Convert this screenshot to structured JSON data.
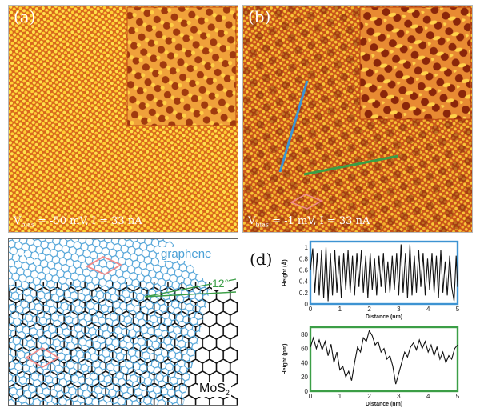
{
  "figure": {
    "panels": {
      "a": {
        "label": "(a)",
        "bias_prefix": "V",
        "bias_sub": "bias",
        "caption_rest": " = -50 mV, I = 33 nA"
      },
      "b": {
        "label": "(b)",
        "bias_prefix": "V",
        "bias_sub": "bias",
        "caption_rest": " = -1 mV, I = 33 nA"
      },
      "c": {
        "label": "(c)",
        "graphene_label": "graphene",
        "angle_label": "12°",
        "mos2_prefix": "MoS",
        "mos2_sub": "2"
      },
      "d": {
        "label": "(d)"
      }
    },
    "colors": {
      "stm_bg": "#d8661c",
      "stm_spot": "#ffe24a",
      "stm_dark": "#9c2f0c",
      "graphene": "#4aa0d6",
      "mos2": "#111111",
      "profile_blue": "#3d93d2",
      "profile_green": "#3b9e46",
      "unit_cell": "#f08a8a"
    }
  },
  "chart_data": [
    {
      "type": "line",
      "frame_color": "#3d93d2",
      "xlabel": "Distance (nm)",
      "ylabel": "Height (Å)",
      "xlim": [
        0,
        5
      ],
      "ylim": [
        0,
        1.1
      ],
      "xticks": [
        "0",
        "1",
        "2",
        "3",
        "4",
        "5"
      ],
      "yticks": [
        "0",
        "0.2",
        "0.4",
        "0.6",
        "0.8",
        "1"
      ],
      "ytick_values": [
        0,
        0.2,
        0.4,
        0.6,
        0.8,
        1.0
      ],
      "x": [
        0,
        0.08,
        0.15,
        0.23,
        0.3,
        0.38,
        0.45,
        0.53,
        0.6,
        0.68,
        0.75,
        0.83,
        0.9,
        0.98,
        1.05,
        1.13,
        1.2,
        1.28,
        1.35,
        1.43,
        1.5,
        1.58,
        1.65,
        1.73,
        1.8,
        1.88,
        1.95,
        2.03,
        2.1,
        2.18,
        2.25,
        2.33,
        2.4,
        2.48,
        2.55,
        2.63,
        2.7,
        2.78,
        2.85,
        2.93,
        3.0,
        3.08,
        3.15,
        3.23,
        3.3,
        3.38,
        3.45,
        3.53,
        3.6,
        3.68,
        3.75,
        3.83,
        3.9,
        3.98,
        4.05,
        4.13,
        4.2,
        4.28,
        4.35,
        4.43,
        4.5,
        4.58,
        4.65,
        4.73,
        4.8,
        4.88,
        4.95,
        5.0
      ],
      "series": [
        {
          "values": [
            0.6,
            0.98,
            0.2,
            0.9,
            0.15,
            0.95,
            0.1,
            1.0,
            0.05,
            0.9,
            0.15,
            0.95,
            0.2,
            0.85,
            0.1,
            0.9,
            0.25,
            0.95,
            0.2,
            0.85,
            0.15,
            0.9,
            0.3,
            0.95,
            0.2,
            0.85,
            0.1,
            0.9,
            0.25,
            0.8,
            0.15,
            0.85,
            0.3,
            0.9,
            0.2,
            0.75,
            0.2,
            0.85,
            0.25,
            0.9,
            0.15,
            1.05,
            0.2,
            0.9,
            0.1,
            1.05,
            0.15,
            0.85,
            0.2,
            0.95,
            0.3,
            0.9,
            0.15,
            0.8,
            0.25,
            0.9,
            0.2,
            0.85,
            0.1,
            0.95,
            0.2,
            0.75,
            0.15,
            0.85,
            0.3,
            0.05,
            0.85,
            0.3
          ]
        }
      ]
    },
    {
      "type": "line",
      "frame_color": "#3b9e46",
      "xlabel": "Distance (nm)",
      "ylabel": "Height (pm)",
      "xlim": [
        0,
        5
      ],
      "ylim": [
        0,
        90
      ],
      "xticks": [
        "0",
        "1",
        "2",
        "3",
        "4",
        "5"
      ],
      "yticks": [
        "0",
        "20",
        "40",
        "60",
        "80"
      ],
      "ytick_values": [
        0,
        20,
        40,
        60,
        80
      ],
      "x": [
        0,
        0.1,
        0.2,
        0.3,
        0.4,
        0.5,
        0.6,
        0.7,
        0.8,
        0.9,
        1.0,
        1.1,
        1.2,
        1.3,
        1.4,
        1.5,
        1.6,
        1.7,
        1.8,
        1.9,
        2.0,
        2.1,
        2.2,
        2.3,
        2.4,
        2.5,
        2.6,
        2.7,
        2.8,
        2.9,
        3.0,
        3.1,
        3.2,
        3.3,
        3.4,
        3.5,
        3.6,
        3.7,
        3.8,
        3.9,
        4.0,
        4.1,
        4.2,
        4.3,
        4.4,
        4.5,
        4.6,
        4.7,
        4.8,
        4.9,
        5.0
      ],
      "series": [
        {
          "values": [
            62,
            75,
            60,
            72,
            58,
            70,
            50,
            66,
            40,
            55,
            30,
            35,
            20,
            28,
            15,
            40,
            62,
            55,
            75,
            70,
            85,
            78,
            65,
            70,
            55,
            60,
            45,
            50,
            35,
            10,
            25,
            40,
            55,
            48,
            62,
            68,
            58,
            72,
            60,
            70,
            55,
            65,
            50,
            62,
            45,
            55,
            40,
            50,
            45,
            60,
            65
          ]
        }
      ]
    }
  ]
}
